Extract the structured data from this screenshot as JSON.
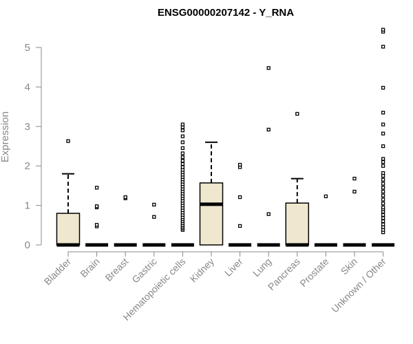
{
  "chart_data": {
    "type": "boxplot",
    "title": "ENSG00000207142 - Y_RNA",
    "xlabel": "",
    "ylabel": "Expression",
    "ylim": [
      0,
      5.5
    ],
    "yticks": [
      0,
      1,
      2,
      3,
      4,
      5
    ],
    "ytick_labels": [
      "0",
      "1",
      "2",
      "3",
      "4",
      "5"
    ],
    "grid": false,
    "box_fill": "#efe8cf",
    "outline_color": "#000000",
    "axis_color": "#888888",
    "categories": [
      "Bladder",
      "Brain",
      "Breast",
      "Gastric",
      "Hematopoietic cells",
      "Kidney",
      "Liver",
      "Lung",
      "Pancreas",
      "Prostate",
      "Skin",
      "Unknown / Other"
    ],
    "boxes": [
      {
        "category": "Bladder",
        "min": 0,
        "q1": 0,
        "median": 0,
        "q3": 0.8,
        "max": 1.8,
        "outliers": [
          2.63
        ]
      },
      {
        "category": "Brain",
        "min": 0,
        "q1": 0,
        "median": 0,
        "q3": 0,
        "max": 0,
        "outliers": [
          0.47,
          0.51,
          0.95,
          0.98,
          1.45
        ]
      },
      {
        "category": "Breast",
        "min": 0,
        "q1": 0,
        "median": 0,
        "q3": 0,
        "max": 0,
        "outliers": [
          1.18,
          1.21
        ]
      },
      {
        "category": "Gastric",
        "min": 0,
        "q1": 0,
        "median": 0,
        "q3": 0,
        "max": 0,
        "outliers": [
          0.71,
          1.02
        ]
      },
      {
        "category": "Hematopoietic cells",
        "min": 0,
        "q1": 0,
        "median": 0,
        "q3": 0,
        "max": 0,
        "outliers": [
          0.38,
          0.42,
          0.46,
          0.5,
          0.55,
          0.6,
          0.65,
          0.7,
          0.76,
          0.82,
          0.88,
          0.94,
          1.0,
          1.06,
          1.12,
          1.18,
          1.24,
          1.3,
          1.36,
          1.42,
          1.48,
          1.54,
          1.6,
          1.66,
          1.72,
          1.78,
          1.84,
          1.9,
          1.97,
          2.05,
          2.13,
          2.22,
          2.32,
          2.45,
          2.6,
          2.75,
          2.9,
          2.98,
          3.05
        ]
      },
      {
        "category": "Kidney",
        "min": 0,
        "q1": 0,
        "median": 1.03,
        "q3": 1.57,
        "max": 2.6,
        "outliers": []
      },
      {
        "category": "Liver",
        "min": 0,
        "q1": 0,
        "median": 0,
        "q3": 0,
        "max": 0,
        "outliers": [
          0.48,
          1.21,
          1.97,
          2.03
        ]
      },
      {
        "category": "Lung",
        "min": 0,
        "q1": 0,
        "median": 0,
        "q3": 0,
        "max": 0,
        "outliers": [
          0.78,
          2.92,
          4.48
        ]
      },
      {
        "category": "Pancreas",
        "min": 0,
        "q1": 0,
        "median": 0,
        "q3": 1.06,
        "max": 1.68,
        "outliers": [
          3.32
        ]
      },
      {
        "category": "Prostate",
        "min": 0,
        "q1": 0,
        "median": 0,
        "q3": 0,
        "max": 0,
        "outliers": [
          1.23
        ]
      },
      {
        "category": "Skin",
        "min": 0,
        "q1": 0,
        "median": 0,
        "q3": 0,
        "max": 0,
        "outliers": [
          1.35,
          1.68
        ]
      },
      {
        "category": "Unknown / Other",
        "min": 0,
        "q1": 0,
        "median": 0,
        "q3": 0,
        "max": 0,
        "outliers": [
          0.32,
          0.38,
          0.45,
          0.52,
          0.6,
          0.68,
          0.76,
          0.84,
          0.9,
          0.95,
          1.05,
          1.15,
          1.25,
          1.35,
          1.45,
          1.55,
          1.65,
          1.75,
          1.82,
          2.0,
          2.1,
          2.18,
          2.5,
          2.82,
          3.05,
          3.35,
          3.98,
          5.02,
          5.4,
          5.45
        ]
      }
    ]
  }
}
